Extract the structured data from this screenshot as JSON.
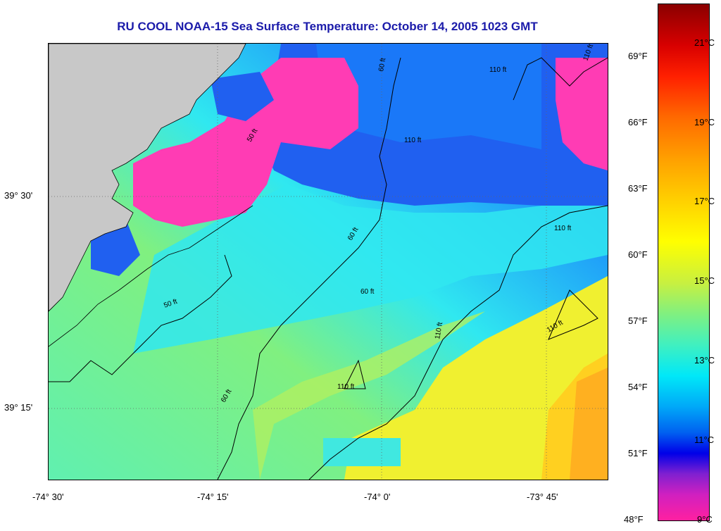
{
  "title": "RU COOL  NOAA-15  Sea Surface Temperature:  October 14, 2005 1023 GMT",
  "lat_labels": [
    "39° 30'",
    "39° 15'"
  ],
  "lon_labels": [
    "-74° 30'",
    "-74° 15'",
    "-74° 0'",
    "-73° 45'"
  ],
  "fahrenheit_labels": [
    "69°F",
    "66°F",
    "63°F",
    "60°F",
    "57°F",
    "54°F",
    "51°F",
    "48°F"
  ],
  "celsius_labels": [
    "21°C",
    "19°C",
    "17°C",
    "15°C",
    "13°C",
    "11°C",
    "9°C"
  ],
  "contour_labels": {
    "c50_a": "50 ft",
    "c50_b": "50 ft",
    "c60_a": "60 ft",
    "c60_b": "60 ft",
    "c60_c": "60 ft",
    "c60_d": "60 ft",
    "c110_a": "110 ft",
    "c110_b": "110 ft",
    "c110_c": "110 ft",
    "c110_d": "110 ft",
    "c110_e": "110 ft",
    "c110_f": "110 ft",
    "c110_g": "110 ft"
  },
  "colors": {
    "land": "#c8c8c8",
    "title": "#1b1baa",
    "pink": "#ff3cb4",
    "blue": "#2050f0",
    "cyan": "#30e8f0",
    "green": "#70f0a0",
    "yellow": "#f0f030",
    "orange": "#ffc020"
  }
}
